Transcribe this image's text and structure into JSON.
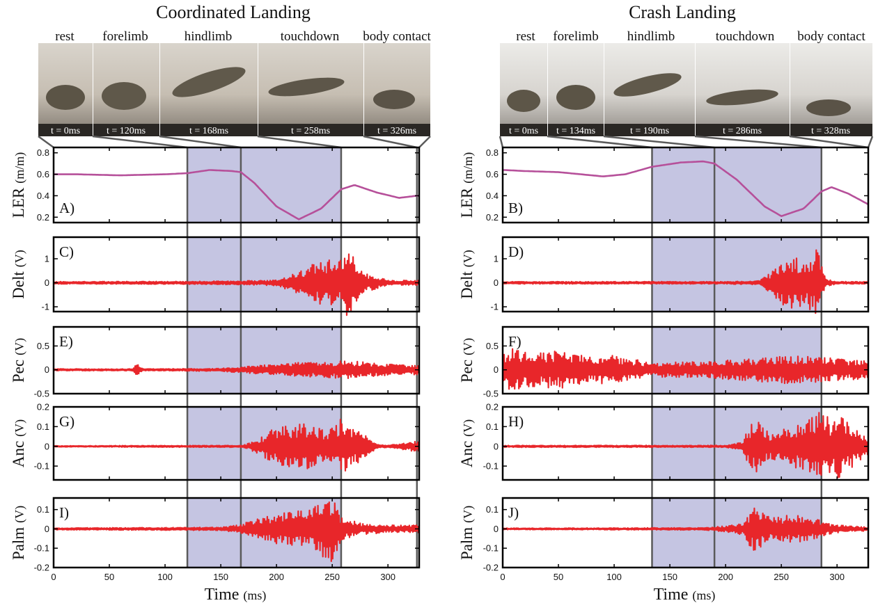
{
  "figures": [
    {
      "title": "Coordinated Landing",
      "phases": [
        "rest",
        "forelimb",
        "hindlimb",
        "touchdown",
        "body contact"
      ],
      "frame_times": [
        "t = 0ms",
        "t = 120ms",
        "t = 168ms",
        "t = 258ms",
        "t = 326ms"
      ],
      "event_times_ms": [
        0,
        120,
        168,
        258,
        326
      ],
      "shaded_ranges_ms": [
        [
          120,
          168
        ],
        [
          168,
          258
        ]
      ]
    },
    {
      "title": "Crash Landing",
      "phases": [
        "rest",
        "forelimb",
        "hindlimb",
        "touchdown",
        "body contact"
      ],
      "frame_times": [
        "t = 0ms",
        "t = 134ms",
        "t = 190ms",
        "t = 286ms",
        "t = 328ms"
      ],
      "event_times_ms": [
        0,
        134,
        190,
        286,
        328
      ],
      "shaded_ranges_ms": [
        [
          134,
          190
        ],
        [
          190,
          286
        ]
      ]
    }
  ],
  "rows": [
    {
      "ylabel": "LER",
      "unit": "(m/m)",
      "panel_labels": [
        "A)",
        "B)"
      ],
      "ylim": [
        0.15,
        0.85
      ],
      "ticks": [
        0.2,
        0.4,
        0.6,
        0.8
      ],
      "tick_labels": [
        "0.2",
        "0.4",
        "0.6",
        "0.8"
      ]
    },
    {
      "ylabel": "Delt",
      "unit": "(V)",
      "panel_labels": [
        "C)",
        "D)"
      ],
      "ylim": [
        -1.2,
        1.9
      ],
      "ticks": [
        -1,
        0,
        1
      ],
      "tick_labels": [
        "-1",
        "0",
        "1"
      ]
    },
    {
      "ylabel": "Pec",
      "unit": "(V)",
      "panel_labels": [
        "E)",
        "F)"
      ],
      "ylim": [
        -0.5,
        0.9
      ],
      "ticks": [
        -0.5,
        0,
        0.5
      ],
      "tick_labels": [
        "-0.5",
        "0",
        "0.5"
      ]
    },
    {
      "ylabel": "Anc",
      "unit": "(V)",
      "panel_labels": [
        "G)",
        "H)"
      ],
      "ylim": [
        -0.17,
        0.2
      ],
      "ticks": [
        -0.1,
        0,
        0.1,
        0.2
      ],
      "tick_labels": [
        "-0.1",
        "0",
        "0.1",
        "0.2"
      ]
    },
    {
      "ylabel": "Palm",
      "unit": "(V)",
      "panel_labels": [
        "I)",
        "J)"
      ],
      "ylim": [
        -0.2,
        0.16
      ],
      "ticks": [
        -0.2,
        -0.1,
        0,
        0.1
      ],
      "tick_labels": [
        "-0.2",
        "-0.1",
        "0",
        "0.1"
      ]
    }
  ],
  "xaxis": {
    "label": "Time",
    "unit": "(ms)",
    "ticks": [
      0,
      50,
      100,
      150,
      200,
      250,
      300
    ],
    "tick_labels": [
      "0",
      "50",
      "100",
      "150",
      "200",
      "250",
      "300"
    ],
    "xlim": [
      0,
      328
    ]
  },
  "colors": {
    "ler_line": "#b6509a",
    "emg_line": "#e8262a",
    "shade": "#c5c5e2",
    "event_line": "#5a5a5a"
  },
  "chart_data": [
    {
      "type": "line",
      "title": "Coordinated Landing",
      "xlabel": "Time (ms)",
      "xlim": [
        0,
        328
      ],
      "panels": [
        {
          "panel": "A)",
          "ylabel": "LER (m/m)",
          "ylim": [
            0.15,
            0.85
          ],
          "series": [
            {
              "x": [
                0,
                20,
                60,
                100,
                120,
                140,
                160,
                168,
                180,
                200,
                220,
                240,
                258,
                270,
                290,
                310,
                326
              ],
              "values": [
                0.6,
                0.6,
                0.59,
                0.6,
                0.61,
                0.64,
                0.63,
                0.62,
                0.52,
                0.3,
                0.18,
                0.28,
                0.46,
                0.5,
                0.43,
                0.38,
                0.4
              ]
            }
          ]
        },
        {
          "panel": "C)",
          "ylabel": "Delt (V)",
          "ylim": [
            -1.2,
            1.9
          ],
          "series": [
            {
              "name": "Delt",
              "envelope_x": [
                0,
                120,
                168,
                200,
                220,
                240,
                255,
                265,
                275,
                300,
                326
              ],
              "envelope_amplitude": [
                0.05,
                0.06,
                0.08,
                0.12,
                0.45,
                1.0,
                0.9,
                1.6,
                0.5,
                0.1,
                0.1
              ]
            }
          ]
        },
        {
          "panel": "E)",
          "ylabel": "Pec (V)",
          "ylim": [
            -0.5,
            0.9
          ],
          "series": [
            {
              "name": "Pec",
              "envelope_x": [
                0,
                70,
                75,
                80,
                150,
                190,
                220,
                240,
                260,
                300,
                326
              ],
              "envelope_amplitude": [
                0.02,
                0.02,
                0.12,
                0.02,
                0.03,
                0.1,
                0.15,
                0.15,
                0.2,
                0.12,
                0.1
              ]
            }
          ]
        },
        {
          "panel": "G)",
          "ylabel": "Anc (V)",
          "ylim": [
            -0.17,
            0.2
          ],
          "series": [
            {
              "name": "Anc",
              "envelope_x": [
                0,
                170,
                185,
                200,
                225,
                245,
                260,
                270,
                290,
                300,
                326
              ],
              "envelope_amplitude": [
                0.003,
                0.005,
                0.04,
                0.1,
                0.12,
                0.08,
                0.15,
                0.1,
                0.01,
                0.005,
                0.03
              ]
            }
          ]
        },
        {
          "panel": "I)",
          "ylabel": "Palm (V)",
          "ylim": [
            -0.2,
            0.16
          ],
          "series": [
            {
              "name": "Palm",
              "envelope_x": [
                0,
                150,
                165,
                200,
                230,
                250,
                258,
                275,
                300,
                326
              ],
              "envelope_amplitude": [
                0.005,
                0.008,
                0.02,
                0.08,
                0.1,
                0.18,
                0.06,
                0.03,
                0.02,
                0.02
              ]
            }
          ]
        }
      ]
    },
    {
      "type": "line",
      "title": "Crash Landing",
      "xlabel": "Time (ms)",
      "xlim": [
        0,
        328
      ],
      "panels": [
        {
          "panel": "B)",
          "ylabel": "LER (m/m)",
          "ylim": [
            0.15,
            0.85
          ],
          "series": [
            {
              "x": [
                0,
                20,
                50,
                90,
                110,
                134,
                160,
                180,
                190,
                210,
                235,
                250,
                270,
                286,
                295,
                310,
                328
              ],
              "values": [
                0.64,
                0.63,
                0.62,
                0.58,
                0.6,
                0.67,
                0.71,
                0.72,
                0.7,
                0.55,
                0.3,
                0.21,
                0.28,
                0.44,
                0.48,
                0.42,
                0.32
              ]
            }
          ]
        },
        {
          "panel": "D)",
          "ylabel": "Delt (V)",
          "ylim": [
            -1.2,
            1.9
          ],
          "series": [
            {
              "name": "Delt",
              "envelope_x": [
                0,
                200,
                230,
                240,
                255,
                270,
                282,
                290,
                300,
                328
              ],
              "envelope_amplitude": [
                0.05,
                0.05,
                0.08,
                0.4,
                1.1,
                1.0,
                1.5,
                0.15,
                0.05,
                0.05
              ]
            }
          ]
        },
        {
          "panel": "F)",
          "ylabel": "Pec (V)",
          "ylim": [
            -0.5,
            0.9
          ],
          "series": [
            {
              "name": "Pec",
              "envelope_x": [
                0,
                10,
                30,
                50,
                70,
                100,
                134,
                190,
                230,
                260,
                290,
                328
              ],
              "envelope_amplitude": [
                0.4,
                0.45,
                0.35,
                0.4,
                0.3,
                0.3,
                0.15,
                0.18,
                0.25,
                0.3,
                0.25,
                0.2
              ]
            }
          ]
        },
        {
          "panel": "H)",
          "ylabel": "Anc (V)",
          "ylim": [
            -0.17,
            0.2
          ],
          "series": [
            {
              "name": "Anc",
              "envelope_x": [
                0,
                200,
                215,
                225,
                240,
                255,
                270,
                282,
                295,
                300,
                315,
                328
              ],
              "envelope_amplitude": [
                0.005,
                0.005,
                0.02,
                0.15,
                0.06,
                0.1,
                0.12,
                0.18,
                0.14,
                0.17,
                0.1,
                0.04
              ]
            }
          ]
        },
        {
          "panel": "J)",
          "ylabel": "Palm (V)",
          "ylim": [
            -0.2,
            0.16
          ],
          "series": [
            {
              "name": "Palm",
              "envelope_x": [
                0,
                180,
                200,
                215,
                225,
                240,
                270,
                286,
                300,
                328
              ],
              "envelope_amplitude": [
                0.004,
                0.006,
                0.015,
                0.03,
                0.12,
                0.06,
                0.08,
                0.04,
                0.02,
                0.01
              ]
            }
          ]
        }
      ]
    }
  ]
}
